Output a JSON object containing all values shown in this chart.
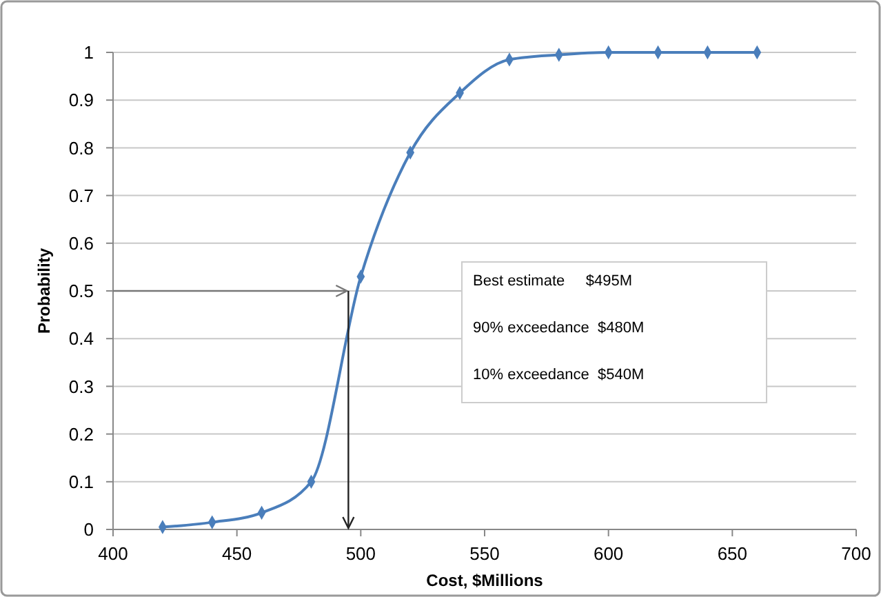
{
  "chart_data": {
    "type": "line",
    "xlabel": "Cost, $Millions",
    "ylabel": "Probability",
    "x": [
      420,
      440,
      460,
      480,
      500,
      520,
      540,
      560,
      580,
      600,
      620,
      640,
      660
    ],
    "series": [
      {
        "color": "#4a7ebb",
        "values": [
          0.005,
          0.015,
          0.035,
          0.1,
          0.53,
          0.79,
          0.915,
          0.985,
          0.995,
          1,
          1,
          1,
          1
        ]
      }
    ],
    "xlim": [
      400,
      700
    ],
    "xticks": [
      400,
      450,
      500,
      550,
      600,
      650,
      700
    ],
    "ylim": [
      0,
      1
    ],
    "yticks": [
      0,
      0.1,
      0.2,
      0.3,
      0.4,
      0.5,
      0.6,
      0.7,
      0.8,
      0.9,
      1
    ],
    "grid": "y",
    "marker": "diamond",
    "line_style": "solid",
    "ref_lines": [
      {
        "axis": "x",
        "value": 495,
        "color": "#222222"
      },
      {
        "axis": "y",
        "value": 0.5,
        "color": "#777777"
      }
    ],
    "annotations": [
      "Best estimate     $495M",
      "90% exceedance  $480M",
      "10% exceedance  $540M"
    ]
  }
}
